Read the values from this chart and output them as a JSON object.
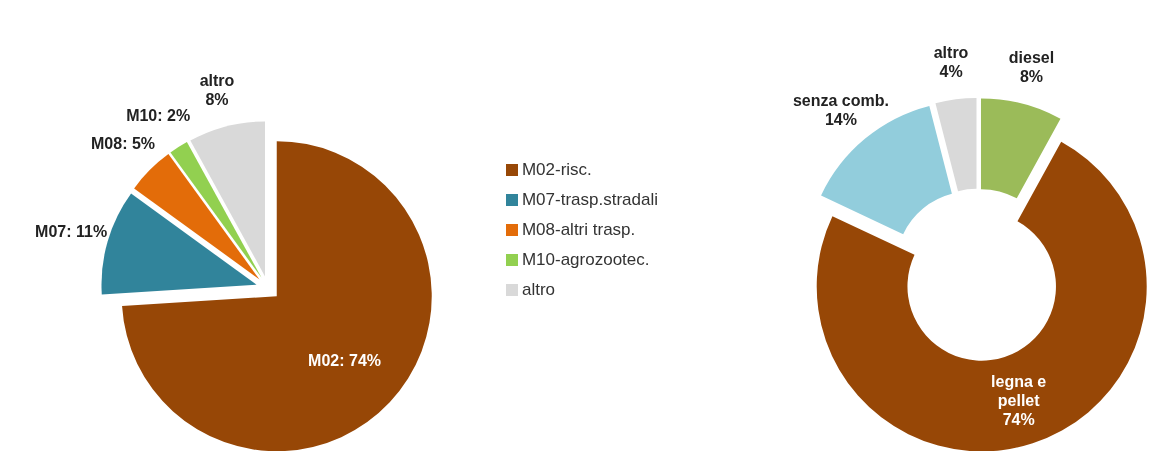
{
  "chart_data": [
    {
      "type": "pie",
      "categories": [
        "M02-risc.",
        "M07-trasp.stradali",
        "M08-altri trasp.",
        "M10-agrozootec.",
        "altro"
      ],
      "values": [
        74,
        11,
        5,
        2,
        8
      ],
      "colors": [
        "#974706",
        "#31849b",
        "#e36c09",
        "#92d050",
        "#d9d9d9"
      ],
      "value_labels": [
        "M02: 74%",
        "M07: 11%",
        "M08: 5%",
        "M10: 2%",
        "altro\n8%"
      ],
      "legend": "right"
    },
    {
      "type": "donut",
      "categories": [
        "diesel",
        "legna e pellet",
        "senza comb.",
        "altro"
      ],
      "values": [
        8,
        74,
        14,
        4
      ],
      "colors": [
        "#9bbb59",
        "#974706",
        "#92cddc",
        "#d9d9d9"
      ],
      "value_labels": [
        "8%",
        "74%",
        "14%",
        "4%"
      ],
      "legend": false
    }
  ]
}
